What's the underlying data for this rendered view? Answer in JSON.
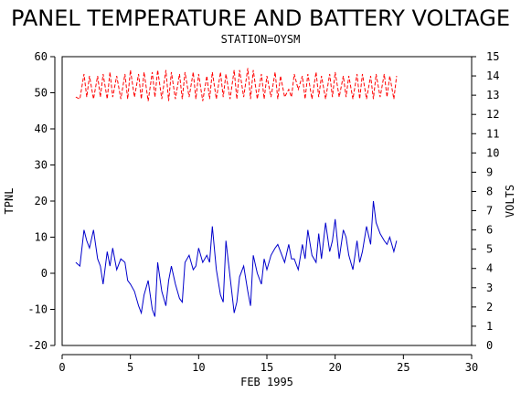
{
  "chart_data": {
    "type": "line",
    "title": "PANEL TEMPERATURE AND BATTERY VOLTAGE",
    "subtitle": "STATION=OYSM",
    "xlabel": "FEB 1995",
    "ylabel_left": "TPNL",
    "ylabel_right": "VOLTS",
    "xlim": [
      0,
      30
    ],
    "ylim_left": [
      -20,
      60
    ],
    "ylim_right": [
      0,
      15
    ],
    "x_ticks": [
      0,
      5,
      10,
      15,
      20,
      25,
      30
    ],
    "y_ticks_left": [
      -20,
      -10,
      0,
      10,
      20,
      30,
      40,
      50,
      60
    ],
    "y_ticks_right": [
      0,
      1,
      2,
      3,
      4,
      5,
      6,
      7,
      8,
      9,
      10,
      11,
      12,
      13,
      14,
      15
    ],
    "grid": false,
    "colors": {
      "tpnl": "#0000cc",
      "volts": "#ff0000",
      "axes": "#000000"
    },
    "series": [
      {
        "axis": "left",
        "x": [
          1.0,
          1.3,
          1.6,
          1.8,
          2.0,
          2.3,
          2.6,
          2.8,
          3.0,
          3.3,
          3.5,
          3.7,
          4.0,
          4.3,
          4.6,
          4.8,
          5.0,
          5.3,
          5.6,
          5.8,
          6.0,
          6.3,
          6.6,
          6.8,
          7.0,
          7.3,
          7.6,
          7.8,
          8.0,
          8.3,
          8.6,
          8.8,
          9.0,
          9.3,
          9.6,
          9.8,
          10.0,
          10.3,
          10.6,
          10.8,
          11.0,
          11.3,
          11.6,
          11.8,
          12.0,
          12.3,
          12.6,
          12.8,
          13.0,
          13.3,
          13.6,
          13.8,
          14.0,
          14.3,
          14.6,
          14.8,
          15.0,
          15.3,
          15.6,
          15.8,
          16.0,
          16.3,
          16.6,
          16.8,
          17.0,
          17.3,
          17.6,
          17.8,
          18.0,
          18.3,
          18.6,
          18.8,
          19.0,
          19.3,
          19.6,
          19.8,
          20.0,
          20.3,
          20.6,
          20.8,
          21.0,
          21.3,
          21.6,
          21.8,
          22.0,
          22.3,
          22.6,
          22.8,
          23.0,
          23.3,
          23.6,
          23.8,
          24.0,
          24.3,
          24.5
        ],
        "y": [
          3,
          2,
          12,
          9,
          7,
          12,
          4,
          2,
          -3,
          6,
          2,
          7,
          1,
          4,
          3,
          -2,
          -3,
          -5,
          -9,
          -11,
          -6,
          -2,
          -10,
          -12,
          3,
          -5,
          -9,
          -2,
          2,
          -3,
          -7,
          -8,
          3,
          5,
          1,
          2,
          7,
          3,
          5,
          3,
          13,
          1,
          -6,
          -8,
          9,
          -1,
          -11,
          -8,
          -1,
          2,
          -5,
          -9,
          5,
          0,
          -3,
          4,
          1,
          5,
          7,
          8,
          6,
          3,
          8,
          4,
          4,
          1,
          8,
          4,
          12,
          5,
          3,
          11,
          4,
          14,
          6,
          9,
          15,
          4,
          12,
          10,
          5,
          1,
          9,
          3,
          6,
          13,
          8,
          20,
          14,
          11,
          9,
          8,
          10,
          6,
          9
        ],
        "name": ""
      },
      {
        "axis": "right",
        "x": [
          1.0,
          1.3,
          1.6,
          1.8,
          2.0,
          2.3,
          2.6,
          2.8,
          3.0,
          3.3,
          3.5,
          3.7,
          4.0,
          4.3,
          4.6,
          4.8,
          5.0,
          5.3,
          5.6,
          5.8,
          6.0,
          6.3,
          6.6,
          6.8,
          7.0,
          7.3,
          7.6,
          7.8,
          8.0,
          8.3,
          8.6,
          8.8,
          9.0,
          9.3,
          9.6,
          9.8,
          10.0,
          10.3,
          10.6,
          10.8,
          11.0,
          11.3,
          11.6,
          11.8,
          12.0,
          12.3,
          12.6,
          12.8,
          13.0,
          13.3,
          13.6,
          13.8,
          14.0,
          14.3,
          14.6,
          14.8,
          15.0,
          15.3,
          15.6,
          15.8,
          16.0,
          16.3,
          16.6,
          16.8,
          17.0,
          17.3,
          17.6,
          17.8,
          18.0,
          18.3,
          18.6,
          18.8,
          19.0,
          19.3,
          19.6,
          19.8,
          20.0,
          20.3,
          20.6,
          20.8,
          21.0,
          21.3,
          21.6,
          21.8,
          22.0,
          22.3,
          22.6,
          22.8,
          23.0,
          23.3,
          23.6,
          23.8,
          24.0,
          24.3,
          24.5
        ],
        "y": [
          12.9,
          12.8,
          14.1,
          12.9,
          14.0,
          12.8,
          14.0,
          12.9,
          14.1,
          12.8,
          14.2,
          12.9,
          14.0,
          12.8,
          14.1,
          12.8,
          14.3,
          12.9,
          14.1,
          12.8,
          14.2,
          12.7,
          14.2,
          12.9,
          14.3,
          12.8,
          14.3,
          12.7,
          14.2,
          12.8,
          14.1,
          12.8,
          14.2,
          12.9,
          14.2,
          12.8,
          14.1,
          12.7,
          14.0,
          12.8,
          14.2,
          12.8,
          14.2,
          12.9,
          14.1,
          12.8,
          14.3,
          12.8,
          14.3,
          12.9,
          14.4,
          12.8,
          14.3,
          12.8,
          14.1,
          12.8,
          14.0,
          12.9,
          14.2,
          12.8,
          14.0,
          12.9,
          13.3,
          12.9,
          14.1,
          13.3,
          14.0,
          12.8,
          14.1,
          12.8,
          14.2,
          12.9,
          14.0,
          12.8,
          14.1,
          12.9,
          14.2,
          12.9,
          14.0,
          12.9,
          14.0,
          12.8,
          14.1,
          12.8,
          14.1,
          12.8,
          14.0,
          12.8,
          14.1,
          12.9,
          14.1,
          12.9,
          14.0,
          12.8,
          14.0
        ],
        "name": "",
        "dashed": true
      }
    ]
  }
}
